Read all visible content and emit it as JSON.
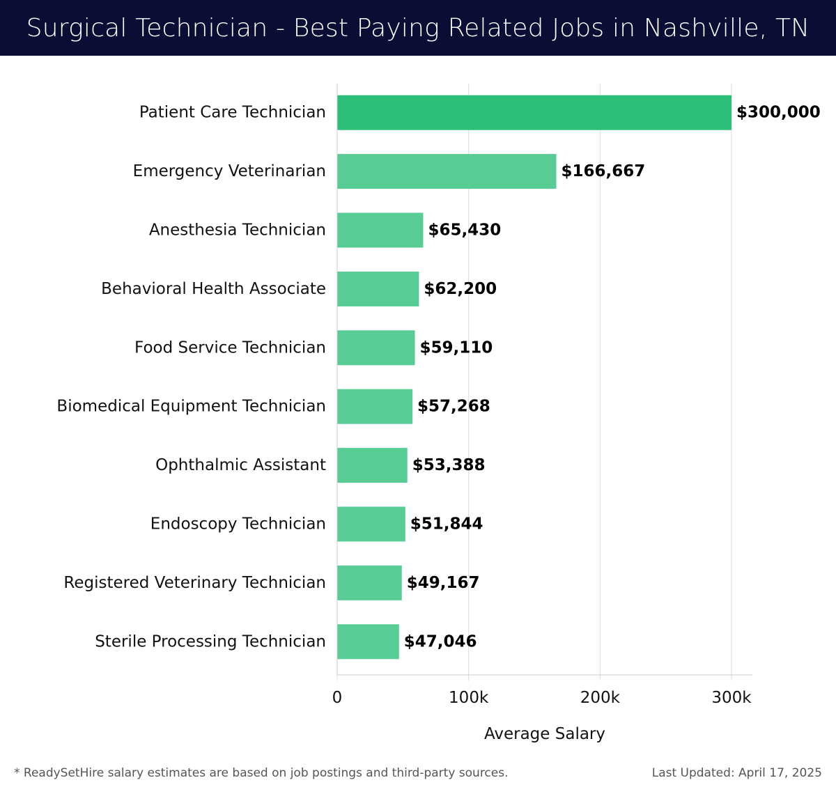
{
  "header": {
    "title": "Surgical Technician - Best Paying Related Jobs in Nashville, TN"
  },
  "footer": {
    "note": "* ReadySetHire salary estimates are based on job postings and third-party sources.",
    "updated": "Last Updated: April 17, 2025"
  },
  "colors": {
    "header_bg": "#0b0d35",
    "top_bar": "#2bbf79",
    "bar": "#57cd95",
    "grid": "#dddddd",
    "text": "#111111"
  },
  "chart_data": {
    "type": "bar",
    "orientation": "horizontal",
    "categories": [
      "Patient Care Technician",
      "Emergency Veterinarian",
      "Anesthesia Technician",
      "Behavioral Health Associate",
      "Food Service Technician",
      "Biomedical Equipment Technician",
      "Ophthalmic Assistant",
      "Endoscopy Technician",
      "Registered Veterinary Technician",
      "Sterile Processing Technician"
    ],
    "values": [
      300000,
      166667,
      65430,
      62200,
      59110,
      57268,
      53388,
      51844,
      49167,
      47046
    ],
    "value_labels": [
      "$300,000",
      "$166,667",
      "$65,430",
      "$62,200",
      "$59,110",
      "$57,268",
      "$53,388",
      "$51,844",
      "$49,167",
      "$47,046"
    ],
    "xlabel": "Average Salary",
    "ylabel": "",
    "xlim": [
      0,
      300000
    ],
    "xticks": [
      0,
      100000,
      200000,
      300000
    ],
    "xtick_labels": [
      "0",
      "100k",
      "200k",
      "300k"
    ],
    "grid": true
  }
}
